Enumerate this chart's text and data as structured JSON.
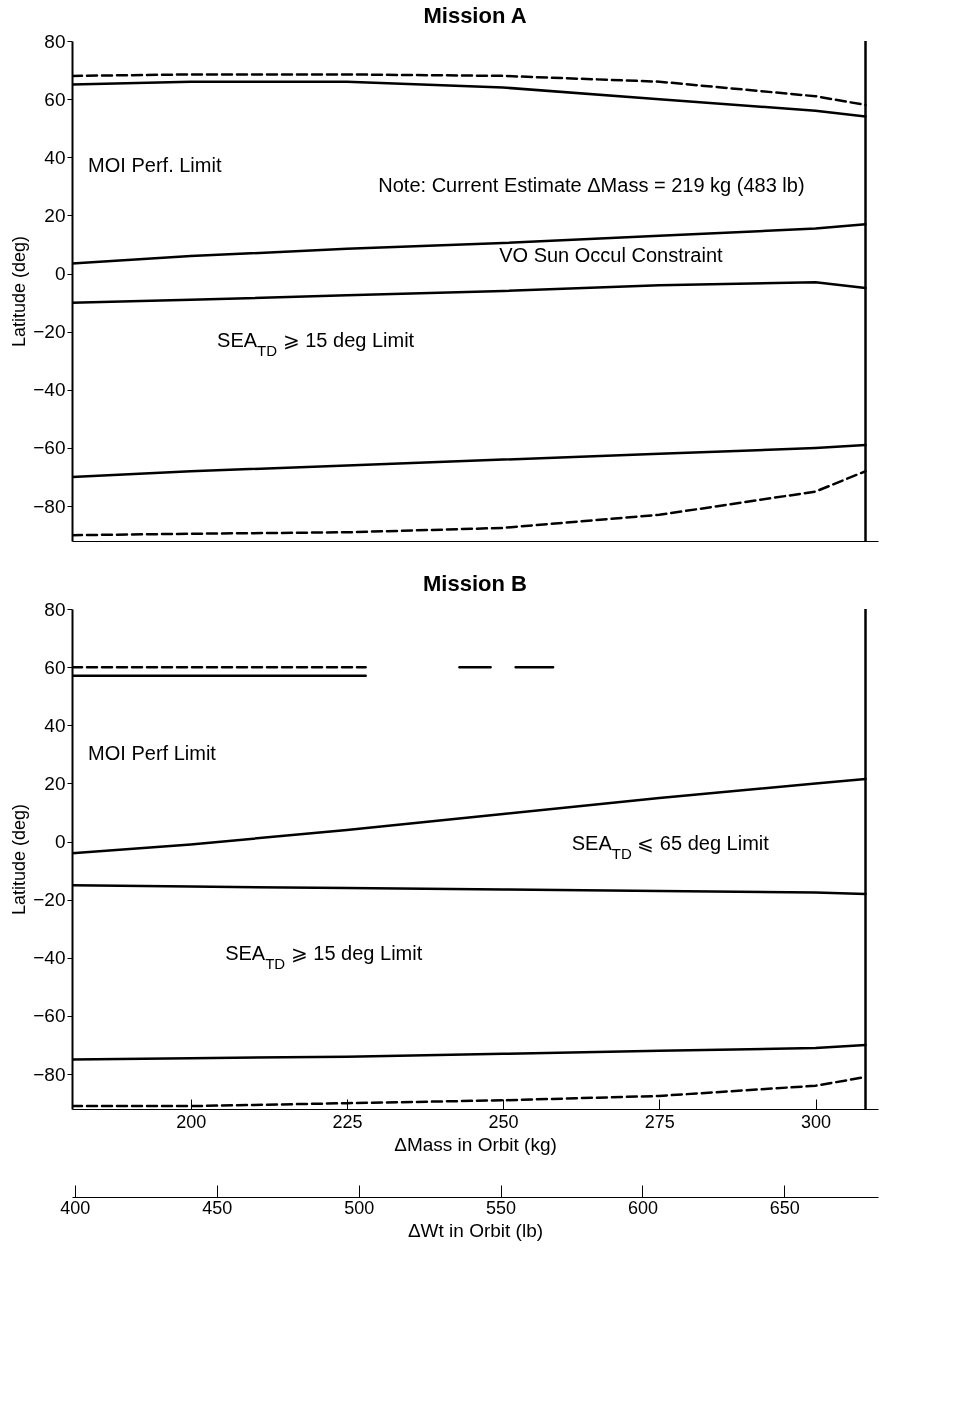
{
  "chart_data": [
    {
      "type": "line",
      "title": "Mission A",
      "ylabel": "Latitude (deg)",
      "xlim": [
        181,
        310
      ],
      "ylim": [
        -92,
        80
      ],
      "yticks": [
        -80,
        -60,
        -40,
        -20,
        0,
        20,
        40,
        60,
        80
      ],
      "tick_labels": "y",
      "grid": false,
      "x": [
        181,
        200,
        225,
        250,
        275,
        300,
        308
      ],
      "series": [
        {
          "color": "#000000",
          "line_style": "dashed",
          "values": [
            68,
            68.5,
            68.5,
            68,
            66,
            61,
            58
          ]
        },
        {
          "color": "#000000",
          "line_style": "solid",
          "values": [
            65,
            66,
            66,
            64,
            60,
            56,
            54
          ]
        },
        {
          "color": "#000000",
          "line_style": "solid",
          "values": [
            3.5,
            6,
            8.5,
            10.5,
            13,
            15.5,
            17
          ]
        },
        {
          "color": "#000000",
          "line_style": "solid",
          "values": [
            -10,
            -9,
            -7.5,
            -6,
            -4,
            -3,
            -5
          ]
        },
        {
          "color": "#000000",
          "line_style": "solid",
          "values": [
            -70,
            -68,
            -66,
            -64,
            -62,
            -60,
            -59
          ]
        },
        {
          "color": "#000000",
          "line_style": "dashed",
          "values": [
            -90,
            -89.5,
            -89,
            -87.5,
            -83,
            -75,
            -68
          ]
        }
      ],
      "ref_lines": [
        {
          "axis": "x",
          "value": 308,
          "color": "#000000",
          "line_style": "solid"
        }
      ],
      "annotations": [
        "MOI Perf. Limit",
        "Note: Current Estimate ΔMass = 219 kg (483 lb)",
        "VO Sun Occul Constraint",
        "SEA$_{TD}$ ⩾ 15 deg Limit"
      ]
    },
    {
      "type": "line",
      "title": "Mission B",
      "ylabel": "Latitude (deg)",
      "xlabel": "ΔMass in Orbit (kg)",
      "xlim": [
        181,
        310
      ],
      "xticks": [
        200,
        225,
        250,
        275,
        300
      ],
      "x2lim": [
        399,
        683
      ],
      "x2ticks": [
        400,
        450,
        500,
        550,
        600,
        650
      ],
      "x2label": "ΔWt in Orbit (lb)",
      "ylim": [
        -92,
        80
      ],
      "yticks": [
        -80,
        -60,
        -40,
        -20,
        0,
        20,
        40,
        60,
        80
      ],
      "grid": false,
      "x": [
        181,
        200,
        225,
        250,
        275,
        300,
        308
      ],
      "series": [
        {
          "color": "#000000",
          "line_style": "dashed",
          "x": [
            181,
            200,
            228
          ],
          "values": [
            60,
            60,
            60
          ]
        },
        {
          "color": "#000000",
          "line_style": "solid",
          "x": [
            243,
            248,
            250,
            252,
            258
          ],
          "values": [
            60,
            60,
            null,
            60,
            60
          ]
        },
        {
          "color": "#000000",
          "line_style": "solid",
          "x": [
            181,
            200,
            228
          ],
          "values": [
            57,
            57,
            57
          ]
        },
        {
          "color": "#000000",
          "line_style": "solid",
          "values": [
            -4,
            -1,
            4,
            9.5,
            15,
            20,
            21.5
          ]
        },
        {
          "color": "#000000",
          "line_style": "solid",
          "values": [
            -15,
            -15.5,
            -16,
            -16.5,
            -17,
            -17.5,
            -18
          ]
        },
        {
          "color": "#000000",
          "line_style": "solid",
          "values": [
            -75,
            -74.5,
            -74,
            -73,
            -72,
            -71,
            -70
          ]
        },
        {
          "color": "#000000",
          "line_style": "dashed",
          "values": [
            -91,
            -91,
            -90,
            -89,
            -87.5,
            -84,
            -81
          ]
        }
      ],
      "ref_lines": [
        {
          "axis": "x",
          "value": 308,
          "color": "#000000",
          "line_style": "solid"
        }
      ],
      "annotations": [
        "MOI Perf Limit",
        "SEA$_{TD}$ ⩽ 65 deg Limit",
        "SEA$_{TD}$ ⩾ 15 deg Limit"
      ]
    }
  ]
}
